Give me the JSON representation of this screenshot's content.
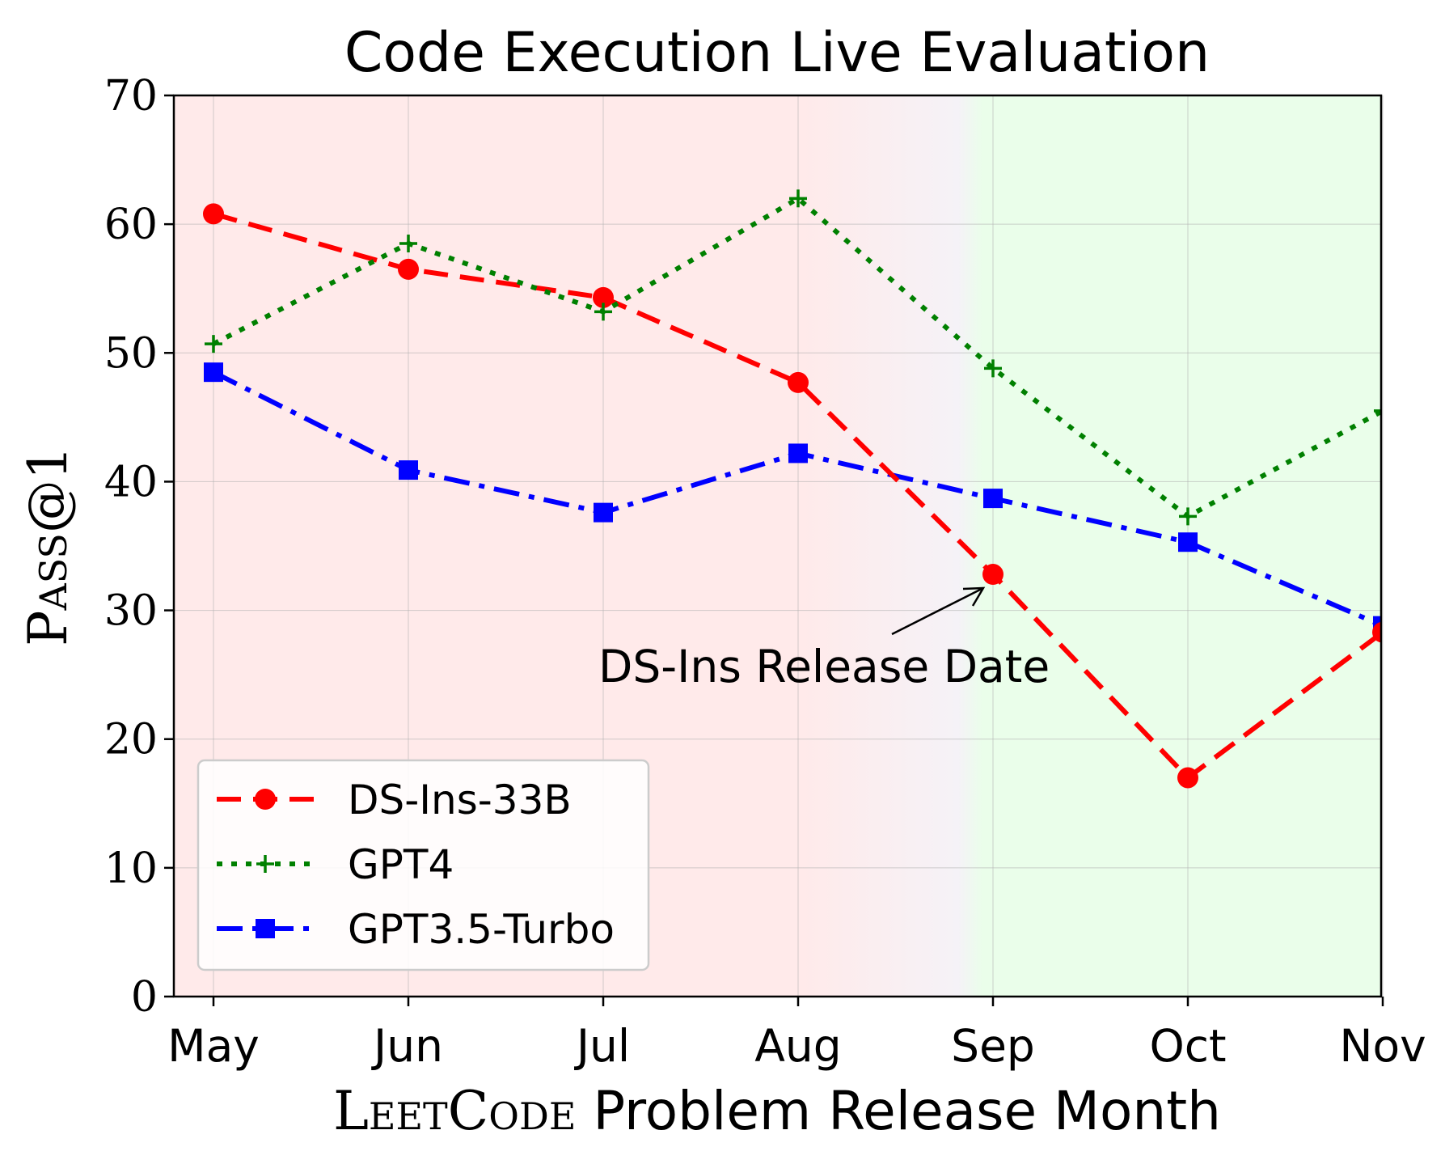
{
  "chart_data": {
    "type": "line",
    "title": "Code Execution Live Evaluation",
    "xlabel": "LeetCode Problem Release Month",
    "xlabel_parts": {
      "lead": "LeetCode",
      "rest": " Problem Release Month"
    },
    "ylabel": "Pass@1",
    "categories": [
      "May",
      "Jun",
      "Jul",
      "Aug",
      "Sep",
      "Oct",
      "Nov"
    ],
    "ylim": [
      0,
      70
    ],
    "yticks": [
      "0",
      "10",
      "20",
      "30",
      "40",
      "50",
      "60",
      "70"
    ],
    "grid": true,
    "legend_position": "lower-left",
    "annotation": {
      "text": "DS-Ins Release Date",
      "points_to": "Sep"
    },
    "regions": [
      {
        "name": "before-release",
        "from": "May",
        "to": "Aug",
        "color": "#ffeaea"
      },
      {
        "name": "after-release",
        "from": "Sep",
        "to": "Nov",
        "color": "#eafeea"
      }
    ],
    "series": [
      {
        "name": "DS-Ins-33B",
        "color": "#ff0000",
        "marker": "circle",
        "dash": "dashed",
        "values": [
          60.8,
          56.5,
          54.3,
          47.7,
          32.8,
          17.0,
          28.3
        ]
      },
      {
        "name": "GPT4",
        "color": "#008000",
        "marker": "plus",
        "dash": "dotted",
        "values": [
          50.7,
          58.5,
          53.2,
          62.0,
          48.8,
          37.3,
          45.5
        ]
      },
      {
        "name": "GPT3.5-Turbo",
        "color": "#0000ff",
        "marker": "square",
        "dash": "dashdot",
        "values": [
          48.5,
          40.9,
          37.6,
          42.2,
          38.7,
          35.3,
          28.8
        ]
      }
    ]
  }
}
